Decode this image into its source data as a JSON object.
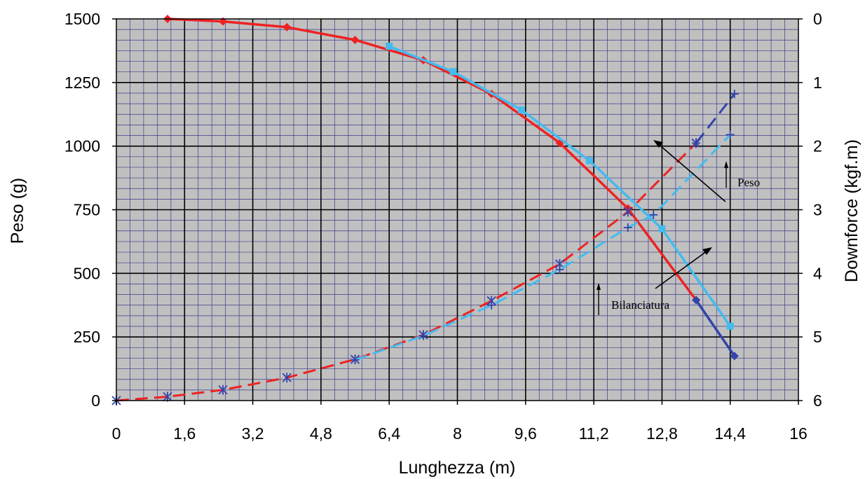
{
  "chart_data": {
    "type": "line",
    "xlabel": "Lunghezza (m)",
    "ylabel": "Peso (g)",
    "y2label": "Downforce (kgf.m)",
    "xlim": [
      0,
      16
    ],
    "ylim": [
      0,
      1500
    ],
    "y2lim": [
      6,
      0
    ],
    "x_ticks": [
      "0",
      "1,6",
      "3,2",
      "4,8",
      "6,4",
      "8",
      "9,6",
      "11,2",
      "12,8",
      "14,4",
      "16"
    ],
    "y_ticks": [
      "0",
      "250",
      "500",
      "750",
      "1000",
      "1250",
      "1500"
    ],
    "y2_ticks": [
      "6",
      "5",
      "4",
      "3",
      "2",
      "1",
      "0"
    ],
    "grid": true,
    "background": "#c0c0c0",
    "series": [
      {
        "axis": "y2",
        "style": "solid",
        "color": "#ee2222",
        "marker": "diamond",
        "x": [
          1.2,
          2.5,
          4.0,
          5.6,
          7.2,
          8.8,
          10.4,
          12.0,
          13.6
        ],
        "y": [
          0.0,
          0.04,
          0.13,
          0.33,
          0.65,
          1.18,
          1.95,
          2.98,
          4.42
        ]
      },
      {
        "axis": "y2",
        "style": "solid",
        "color": "#3344aa",
        "marker": "diamond",
        "x": [
          13.6,
          14.5
        ],
        "y": [
          4.42,
          5.3
        ]
      },
      {
        "axis": "y2",
        "style": "solid",
        "color": "#44bbee",
        "marker": "square",
        "x": [
          6.4,
          7.9,
          9.5,
          11.1,
          12.8,
          14.4
        ],
        "y": [
          0.43,
          0.83,
          1.43,
          2.23,
          3.3,
          4.83
        ]
      },
      {
        "axis": "y",
        "style": "dashed",
        "color": "#ee2222",
        "marker": "star",
        "x": [
          0,
          1.2,
          2.5,
          4.0,
          5.6,
          7.2,
          8.8,
          10.4,
          12.0,
          13.6
        ],
        "y": [
          0,
          15,
          42,
          90,
          162,
          258,
          392,
          537,
          742,
          1012
        ]
      },
      {
        "axis": "y",
        "style": "dashed",
        "color": "#44bbee",
        "marker": "plus",
        "x": [
          5.6,
          7.2,
          8.8,
          10.4,
          12.0,
          12.6,
          14.4
        ],
        "y": [
          160,
          255,
          375,
          515,
          680,
          730,
          1045
        ]
      },
      {
        "axis": "y",
        "style": "dashed",
        "color": "#3344aa",
        "marker": "plus",
        "x": [
          13.6,
          14.5
        ],
        "y": [
          1012,
          1205
        ]
      }
    ],
    "annotations": [
      {
        "text": "Peso",
        "x": 14.3,
        "y": 855
      },
      {
        "text": "Bilanciatura",
        "x": 11.1,
        "y": 370
      }
    ]
  }
}
